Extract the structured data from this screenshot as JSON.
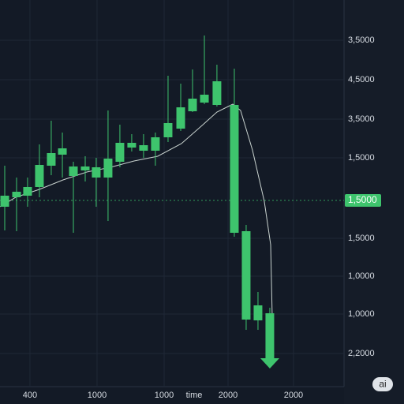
{
  "chart_data": {
    "type": "candlestick",
    "x_label": "time",
    "candles": {
      "x": [
        0,
        1,
        1.93,
        2.93,
        3.93,
        4.87,
        5.8,
        6.8,
        7.73,
        8.73,
        9.73,
        10.73,
        11.73,
        12.73,
        13.8,
        14.87,
        15.87,
        16.87,
        17.93,
        19.4,
        20.4,
        21.4,
        22.4
      ],
      "open": [
        45.6,
        48,
        48.4,
        50.6,
        56,
        58.8,
        53.4,
        54.8,
        53,
        53,
        57,
        60.6,
        59.8,
        59.8,
        63.2,
        65.4,
        69.8,
        72,
        71.4,
        71.4,
        39.4,
        20.6,
        18.6
      ],
      "close": [
        48.4,
        49.4,
        50.6,
        56.2,
        59.2,
        60.4,
        55.8,
        55.8,
        55.6,
        57.8,
        61.8,
        61.8,
        61.2,
        63.2,
        66.8,
        70.8,
        73,
        74,
        77.4,
        39,
        17,
        16.8,
        8
      ],
      "high": [
        56,
        53,
        53,
        61.4,
        67.4,
        64.4,
        57,
        58.4,
        58,
        70,
        66.4,
        64,
        64,
        64.4,
        78.8,
        76.8,
        80.4,
        89,
        81.6,
        80.6,
        41,
        24,
        20
      ],
      "low": [
        39.6,
        39.4,
        45.6,
        48,
        53.6,
        53,
        39,
        52,
        45.6,
        42,
        55.6,
        59.6,
        58,
        56,
        62,
        64.8,
        69.6,
        71.6,
        71,
        38,
        14.4,
        14.4,
        8
      ],
      "color": "#3ec46d"
    },
    "ma": {
      "x": [
        -0.4,
        0.93,
        2.93,
        4.93,
        6.93,
        8.93,
        10.93,
        12.93,
        14.93,
        16.6,
        17.93,
        19.27,
        19.93,
        20.93,
        21.93,
        22.47,
        22.6
      ],
      "values": [
        45.6,
        48,
        50,
        52.4,
        54.4,
        55.6,
        57.2,
        58.4,
        61.6,
        66,
        69.6,
        71.6,
        70,
        60,
        47,
        36,
        18
      ],
      "color": "#c9d3cf"
    },
    "xlim": [
      -0.4,
      28.67
    ],
    "ylim": [
      0,
      98
    ],
    "xticks": [
      {
        "value": 2.13,
        "label": "400"
      },
      {
        "value": 7.8,
        "label": "1000"
      },
      {
        "value": 13.47,
        "label": "1000"
      },
      {
        "value": 18.87,
        "label": "2000"
      },
      {
        "value": 24.4,
        "label": "2000"
      }
    ],
    "yticks": [
      {
        "value": 87.8,
        "label": "3,5000"
      },
      {
        "value": 77.8,
        "label": "4,5000"
      },
      {
        "value": 67.8,
        "label": "3,5000"
      },
      {
        "value": 58,
        "label": "1,5000"
      },
      {
        "value": 37.6,
        "label": "1,5000"
      },
      {
        "value": 28,
        "label": "1,0000"
      },
      {
        "value": 18.4,
        "label": "1,0000"
      },
      {
        "value": 8.4,
        "label": "2,2000"
      }
    ],
    "last_price": {
      "value": 47.2,
      "label": "1,5000"
    },
    "grid": true
  },
  "badge": "ai"
}
